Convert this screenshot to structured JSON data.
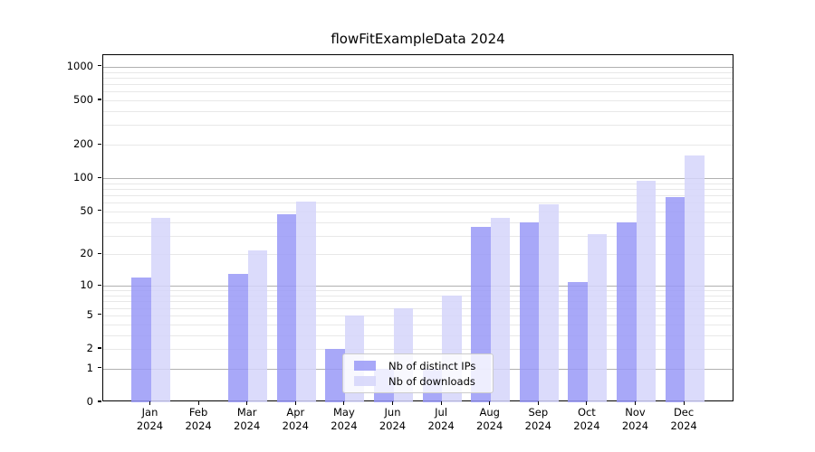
{
  "chart_data": {
    "type": "bar",
    "title": "flowFitExampleData 2024",
    "months": [
      "Jan",
      "Feb",
      "Mar",
      "Apr",
      "May",
      "Jun",
      "Jul",
      "Aug",
      "Sep",
      "Oct",
      "Nov",
      "Dec"
    ],
    "year": "2024",
    "series": [
      {
        "name": "Nb of distinct IPs",
        "color": "#9999f7",
        "alpha": 0.85,
        "values": [
          12,
          0,
          13,
          47,
          2,
          1,
          1,
          36,
          40,
          11,
          40,
          68
        ]
      },
      {
        "name": "Nb of downloads",
        "color": "#d5d5fa",
        "alpha": 0.85,
        "values": [
          44,
          0,
          22,
          61,
          5,
          6,
          8,
          44,
          58,
          31,
          95,
          160
        ]
      }
    ],
    "y_ticks": [
      0,
      1,
      2,
      5,
      10,
      20,
      50,
      100,
      200,
      500,
      1000
    ],
    "y_scale": "log10(value+1)",
    "y_max": 1270,
    "xlabel": "",
    "ylabel": "",
    "grid": true,
    "legend_position": "bottom-center"
  },
  "colors": {
    "grid_major": "#b0b0b0",
    "grid_minor": "#e8e8e8",
    "axis": "#000000",
    "legend_border": "#cccccc"
  }
}
